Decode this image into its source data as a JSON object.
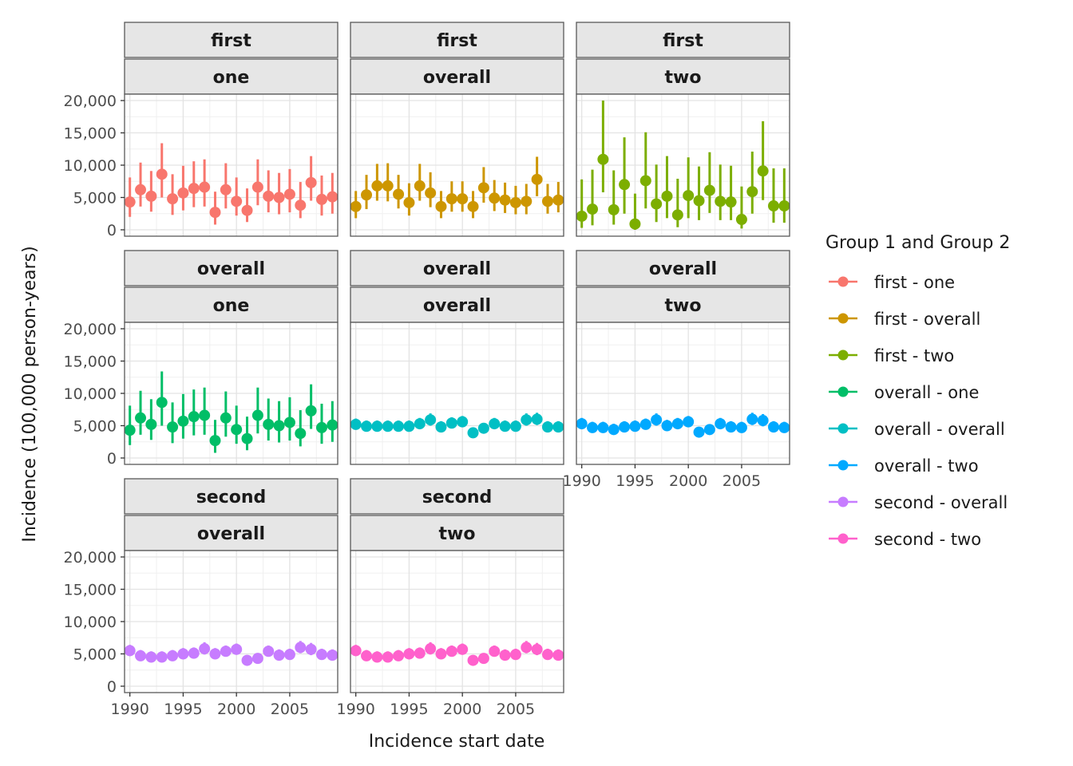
{
  "chart_data": {
    "type": "scatter",
    "facet_rows_label": "Group 1",
    "facet_cols_label": "Group 2",
    "xlabel": "Incidence start date",
    "ylabel": "Incidence (100,000 person-years)",
    "x_ticks": [
      "1990",
      "1995",
      "2000",
      "2005"
    ],
    "y_ticks": [
      "0",
      "5,000",
      "10,000",
      "15,000",
      "20,000"
    ],
    "xlim": [
      1989.5,
      2009.5
    ],
    "ylim": [
      0,
      20000
    ],
    "grid": true,
    "legend_position": "right",
    "legend_title": "Group 1 and Group 2",
    "x": [
      1990,
      1991,
      1992,
      1993,
      1994,
      1995,
      1996,
      1997,
      1998,
      1999,
      2000,
      2001,
      2002,
      2003,
      2004,
      2005,
      2006,
      2007,
      2008,
      2009
    ],
    "panels": [
      {
        "strip_top": "first",
        "strip_bottom": "one",
        "series": "first - one",
        "color": "#F8766D",
        "y": [
          4300,
          6200,
          5200,
          8600,
          4800,
          5700,
          6400,
          6600,
          2700,
          6200,
          4400,
          3000,
          6600,
          5200,
          5000,
          5500,
          3800,
          7300,
          4700,
          5100
        ],
        "lower": [
          2000,
          3600,
          2800,
          5000,
          2300,
          3000,
          3500,
          3600,
          800,
          3300,
          2200,
          1200,
          3800,
          2700,
          2400,
          2700,
          1800,
          4500,
          2200,
          2500
        ],
        "upper": [
          8100,
          10400,
          9100,
          13400,
          8600,
          9900,
          10600,
          10900,
          5900,
          10300,
          8100,
          6400,
          10900,
          9200,
          8800,
          9400,
          7400,
          11400,
          8400,
          8800
        ]
      },
      {
        "strip_top": "first",
        "strip_bottom": "overall",
        "series": "first - overall",
        "color": "#CD9600",
        "y": [
          3600,
          5400,
          6800,
          6800,
          5500,
          4200,
          6800,
          5700,
          3600,
          4800,
          4800,
          3600,
          6500,
          4900,
          4600,
          4200,
          4400,
          7800,
          4400,
          4600
        ],
        "lower": [
          1800,
          3200,
          4500,
          4400,
          3300,
          2200,
          4500,
          3500,
          1800,
          2800,
          2800,
          1800,
          4200,
          2900,
          2600,
          2400,
          2400,
          5200,
          2500,
          2700
        ],
        "upper": [
          6000,
          8500,
          10200,
          10300,
          8500,
          7200,
          10200,
          8900,
          6000,
          7500,
          7500,
          6000,
          9700,
          7700,
          7300,
          6800,
          7100,
          11300,
          7100,
          7400
        ]
      },
      {
        "strip_top": "first",
        "strip_bottom": "two",
        "series": "first - two",
        "color": "#7CAE00",
        "y": [
          2100,
          3200,
          10900,
          3100,
          7000,
          900,
          7600,
          4000,
          5200,
          2300,
          5300,
          4500,
          6100,
          4400,
          4300,
          1600,
          5900,
          9100,
          3700,
          3700
        ],
        "lower": [
          300,
          700,
          5800,
          800,
          2500,
          0,
          3300,
          1200,
          1800,
          400,
          1800,
          1500,
          2600,
          1500,
          1500,
          200,
          2500,
          4600,
          1100,
          1100
        ],
        "upper": [
          7800,
          9300,
          20000,
          9200,
          14300,
          5600,
          15100,
          10100,
          11400,
          7900,
          11200,
          9800,
          12000,
          10100,
          9900,
          6700,
          12100,
          16800,
          9500,
          9500
        ]
      },
      {
        "strip_top": "overall",
        "strip_bottom": "one",
        "series": "overall - one",
        "color": "#00BE67",
        "y": [
          4300,
          6200,
          5200,
          8600,
          4800,
          5700,
          6400,
          6600,
          2700,
          6200,
          4400,
          3000,
          6600,
          5200,
          5000,
          5500,
          3800,
          7300,
          4700,
          5100
        ],
        "lower": [
          2000,
          3600,
          2800,
          5000,
          2300,
          3000,
          3500,
          3600,
          800,
          3300,
          2200,
          1200,
          3800,
          2700,
          2400,
          2700,
          1800,
          4500,
          2200,
          2500
        ],
        "upper": [
          8100,
          10400,
          9100,
          13400,
          8600,
          9900,
          10600,
          10900,
          5900,
          10300,
          8100,
          6400,
          10900,
          9200,
          8800,
          9400,
          7400,
          11400,
          8400,
          8800
        ]
      },
      {
        "strip_top": "overall",
        "strip_bottom": "overall",
        "series": "overall - overall",
        "color": "#00BFC4",
        "y": [
          5200,
          4900,
          4900,
          4900,
          4900,
          4900,
          5300,
          5900,
          4800,
          5400,
          5600,
          3900,
          4600,
          5300,
          4900,
          4900,
          5900,
          6000,
          4800,
          4800
        ],
        "lower": [
          4400,
          4100,
          4100,
          4100,
          4100,
          4100,
          4500,
          5000,
          4000,
          4600,
          4800,
          3200,
          3900,
          4500,
          4100,
          4100,
          5000,
          5100,
          4000,
          4000
        ],
        "upper": [
          6100,
          5800,
          5800,
          5800,
          5800,
          5800,
          6200,
          6900,
          5700,
          6300,
          6500,
          4700,
          5400,
          6200,
          5800,
          5800,
          6900,
          7000,
          5700,
          5700
        ]
      },
      {
        "strip_top": "overall",
        "strip_bottom": "two",
        "series": "overall - two",
        "color": "#00A9FF",
        "y": [
          5300,
          4700,
          4700,
          4400,
          4800,
          4900,
          5200,
          5900,
          5000,
          5300,
          5600,
          4000,
          4400,
          5300,
          4800,
          4700,
          6000,
          5800,
          4800,
          4700
        ],
        "lower": [
          4500,
          3900,
          3900,
          3600,
          4000,
          4100,
          4400,
          5000,
          4200,
          4500,
          4800,
          3300,
          3700,
          4500,
          4000,
          3900,
          5100,
          4900,
          4000,
          3900
        ],
        "upper": [
          6200,
          5600,
          5600,
          5300,
          5700,
          5800,
          6100,
          6900,
          5900,
          6200,
          6500,
          4800,
          5200,
          6200,
          5700,
          5600,
          7000,
          6800,
          5700,
          5600
        ]
      },
      {
        "strip_top": "second",
        "strip_bottom": "overall",
        "series": "second - overall",
        "color": "#C77CFF",
        "y": [
          5500,
          4700,
          4500,
          4500,
          4700,
          5000,
          5100,
          5800,
          5000,
          5400,
          5700,
          4000,
          4300,
          5400,
          4800,
          4900,
          6000,
          5700,
          4900,
          4800
        ],
        "lower": [
          4700,
          3900,
          3700,
          3700,
          3900,
          4200,
          4300,
          4900,
          4200,
          4600,
          4900,
          3300,
          3600,
          4600,
          4000,
          4100,
          5100,
          4800,
          4100,
          4000
        ],
        "upper": [
          6400,
          5600,
          5400,
          5400,
          5600,
          5900,
          6000,
          6800,
          5900,
          6300,
          6600,
          4800,
          5100,
          6300,
          5700,
          5800,
          7000,
          6700,
          5800,
          5700
        ]
      },
      {
        "strip_top": "second",
        "strip_bottom": "two",
        "series": "second - two",
        "color": "#FF61CC",
        "y": [
          5500,
          4700,
          4500,
          4500,
          4700,
          5000,
          5100,
          5800,
          5000,
          5400,
          5700,
          4000,
          4300,
          5400,
          4800,
          4900,
          6000,
          5700,
          4900,
          4800
        ],
        "lower": [
          4700,
          3900,
          3700,
          3700,
          3900,
          4200,
          4300,
          4900,
          4200,
          4600,
          4900,
          3300,
          3600,
          4600,
          4000,
          4100,
          5100,
          4800,
          4100,
          4000
        ],
        "upper": [
          6400,
          5600,
          5400,
          5400,
          5600,
          5900,
          6000,
          6800,
          5900,
          6300,
          6600,
          4800,
          5100,
          6300,
          5700,
          5800,
          7000,
          6700,
          5800,
          5700
        ]
      }
    ],
    "legend": [
      {
        "label": "first - one",
        "color": "#F8766D"
      },
      {
        "label": "first - overall",
        "color": "#CD9600"
      },
      {
        "label": "first - two",
        "color": "#7CAE00"
      },
      {
        "label": "overall - one",
        "color": "#00BE67"
      },
      {
        "label": "overall - overall",
        "color": "#00BFC4"
      },
      {
        "label": "overall - two",
        "color": "#00A9FF"
      },
      {
        "label": "second - overall",
        "color": "#C77CFF"
      },
      {
        "label": "second - two",
        "color": "#FF61CC"
      }
    ]
  }
}
